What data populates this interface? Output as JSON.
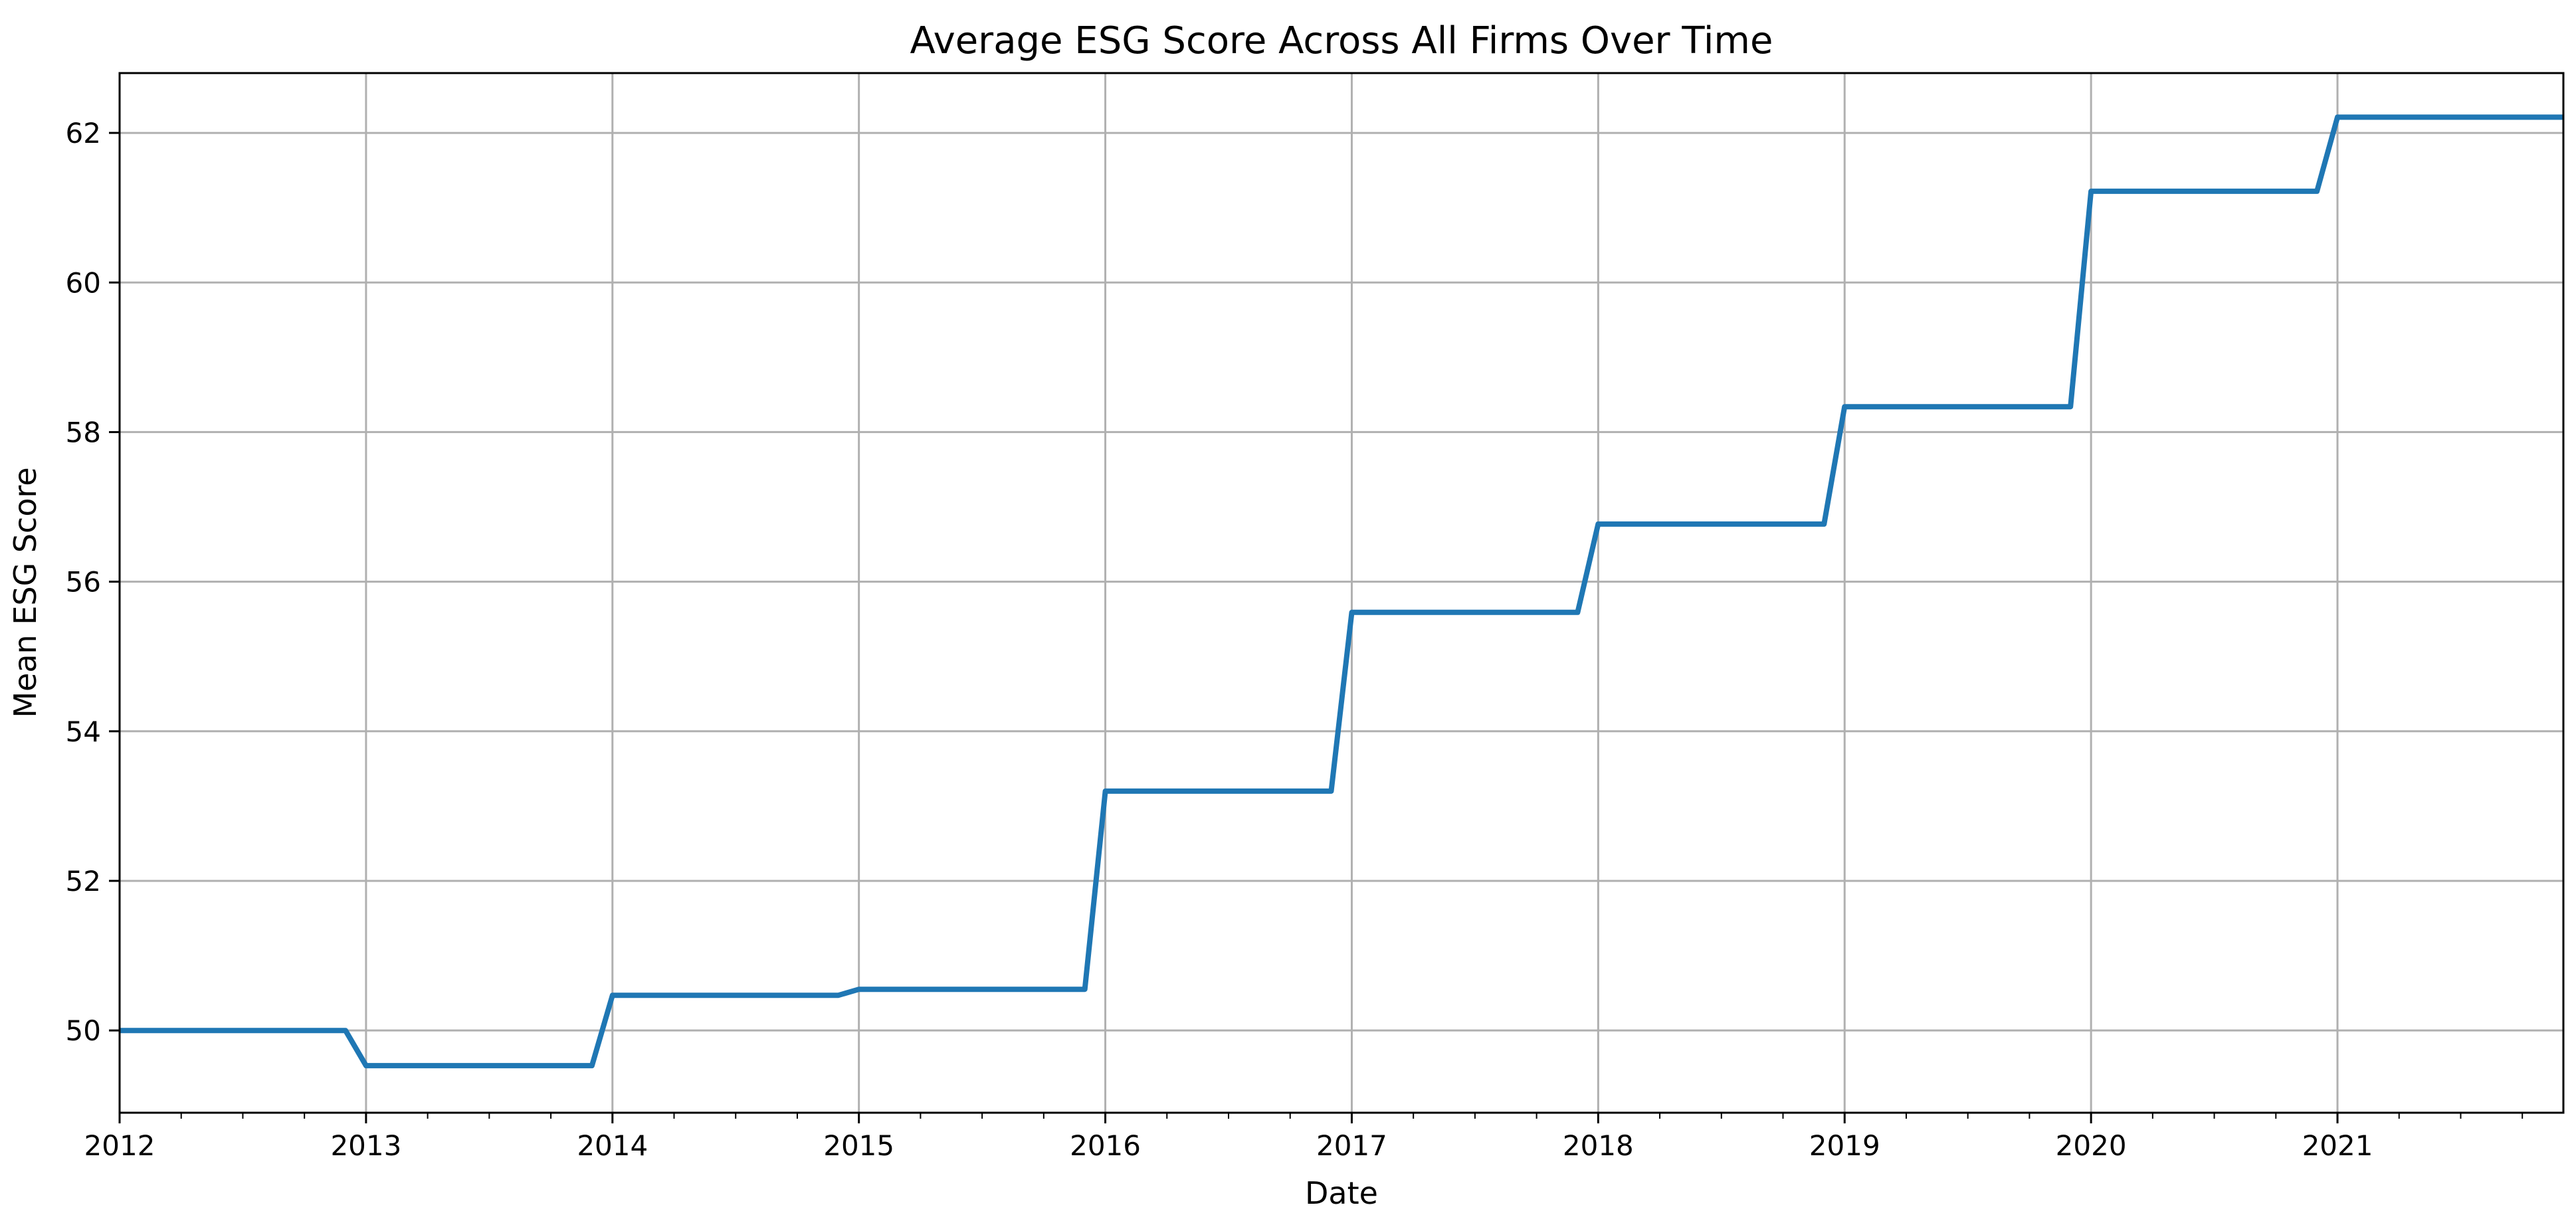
{
  "chart_data": {
    "type": "line",
    "title": "Average ESG Score Across All Firms Over Time",
    "xlabel": "Date",
    "ylabel": "Mean ESG Score",
    "xlim": [
      "2012-01",
      "2021-12"
    ],
    "ylim": [
      48.9,
      62.8
    ],
    "grid": true,
    "legend": "none",
    "x_ticks": [
      "2012",
      "2013",
      "2014",
      "2015",
      "2016",
      "2017",
      "2018",
      "2019",
      "2020",
      "2021"
    ],
    "y_ticks": [
      50,
      52,
      54,
      56,
      58,
      60,
      62
    ],
    "series": [
      {
        "color": "#1f77b4",
        "x": [
          "2012-01",
          "2012-12",
          "2013-01",
          "2013-12",
          "2014-01",
          "2014-12",
          "2015-01",
          "2015-12",
          "2016-01",
          "2016-12",
          "2017-01",
          "2017-12",
          "2018-01",
          "2018-12",
          "2019-01",
          "2019-12",
          "2020-01",
          "2020-12",
          "2021-01",
          "2021-12"
        ],
        "y": [
          50.0,
          50.0,
          49.53,
          49.53,
          50.47,
          50.47,
          50.55,
          50.55,
          53.2,
          53.2,
          55.59,
          55.59,
          56.77,
          56.77,
          58.34,
          58.34,
          61.22,
          61.22,
          62.21,
          62.21
        ]
      }
    ]
  }
}
